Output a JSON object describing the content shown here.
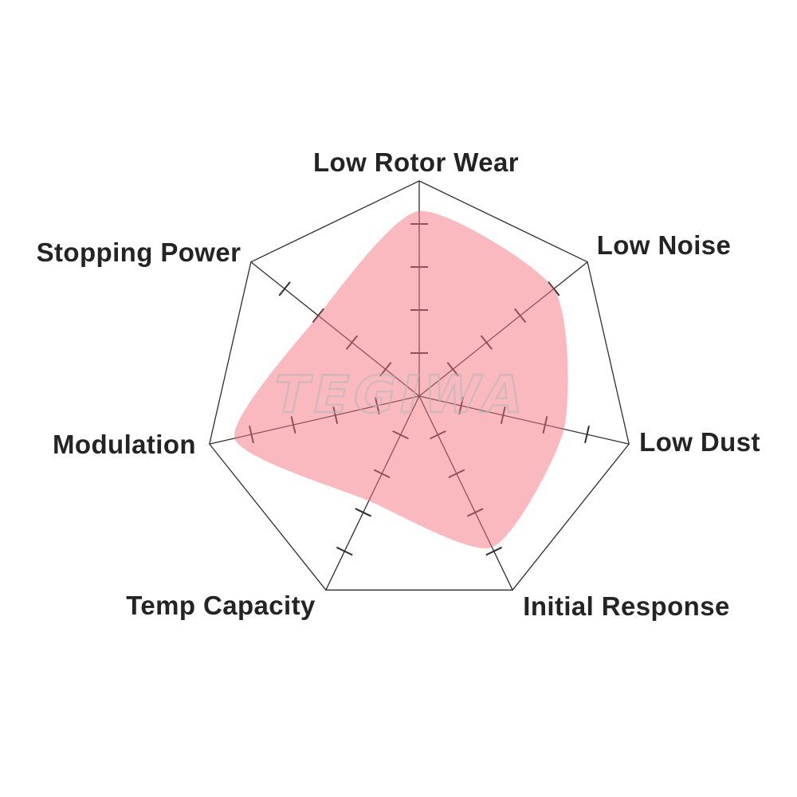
{
  "watermark": {
    "text": "TEGIWA",
    "color": "#b8b8b8"
  },
  "chart_data": {
    "type": "radar",
    "shape": "heptagon",
    "categories": [
      "Low Rotor Wear",
      "Low Noise",
      "Low Dust",
      "Initial Response",
      "Temp Capacity",
      "Modulation",
      "Stopping Power"
    ],
    "values": [
      4.3,
      4.0,
      3.45,
      3.9,
      2.7,
      4.4,
      3.0
    ],
    "scale": {
      "min": 0,
      "max": 5,
      "tick_step": 1,
      "ticks_per_axis": 4
    },
    "axes_order": "clockwise from top",
    "legend": "none",
    "gridlines": "outer boundary and radial axes with tick marks only",
    "colors": {
      "fill": "#f4737f",
      "fill_opacity": 0.5,
      "axis": "#2e2e2e",
      "label": "#242424"
    }
  }
}
